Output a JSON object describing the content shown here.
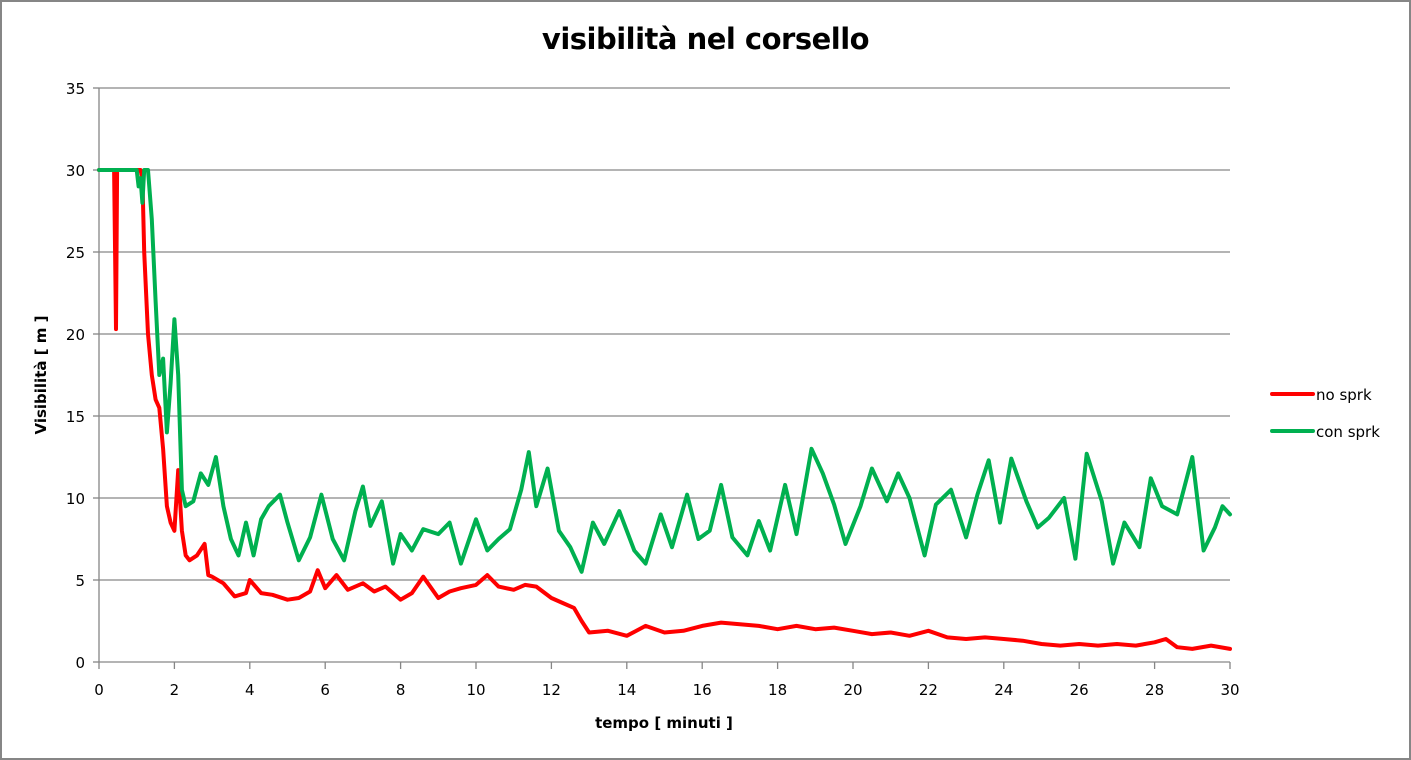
{
  "chart_data": {
    "type": "line",
    "title": "visibilità nel corsello",
    "xlabel": "tempo  [ minuti ]",
    "ylabel": "Visibilità  [ m ]",
    "xlim": [
      0,
      30
    ],
    "ylim": [
      0,
      35
    ],
    "xticks": [
      0,
      2,
      4,
      6,
      8,
      10,
      12,
      14,
      16,
      18,
      20,
      22,
      24,
      26,
      28,
      30
    ],
    "yticks": [
      0,
      5,
      10,
      15,
      20,
      25,
      30,
      35
    ],
    "grid": "horizontal",
    "legend_position": "right",
    "series": [
      {
        "name": "no sprk",
        "color": "#ff0000",
        "x": [
          0,
          0.4,
          0.45,
          0.48,
          0.5,
          1.1,
          1.15,
          1.2,
          1.3,
          1.4,
          1.5,
          1.6,
          1.7,
          1.8,
          1.9,
          2.0,
          2.1,
          2.2,
          2.3,
          2.4,
          2.6,
          2.8,
          2.9,
          3.0,
          3.3,
          3.6,
          3.9,
          4.0,
          4.3,
          4.6,
          5.0,
          5.3,
          5.6,
          5.8,
          6.0,
          6.3,
          6.6,
          7.0,
          7.3,
          7.6,
          8.0,
          8.3,
          8.6,
          9.0,
          9.3,
          9.6,
          10.0,
          10.3,
          10.6,
          11.0,
          11.3,
          11.6,
          12.0,
          12.3,
          12.6,
          12.8,
          13.0,
          13.5,
          14.0,
          14.5,
          15.0,
          15.5,
          16.0,
          16.5,
          17.0,
          17.5,
          18.0,
          18.5,
          19.0,
          19.5,
          20.0,
          20.5,
          21.0,
          21.5,
          22.0,
          22.5,
          23.0,
          23.5,
          24.0,
          24.5,
          25.0,
          25.5,
          26.0,
          26.5,
          27.0,
          27.5,
          28.0,
          28.3,
          28.6,
          29.0,
          29.5,
          30.0
        ],
        "values": [
          30,
          30,
          20.3,
          30,
          30,
          30,
          29.5,
          25,
          20,
          17.5,
          16,
          15.5,
          13,
          9.5,
          8.5,
          8,
          11.7,
          8,
          6.5,
          6.2,
          6.5,
          7.2,
          5.3,
          5.2,
          4.8,
          4,
          4.2,
          5,
          4.2,
          4.1,
          3.8,
          3.9,
          4.3,
          5.6,
          4.5,
          5.3,
          4.4,
          4.8,
          4.3,
          4.6,
          3.8,
          4.2,
          5.2,
          3.9,
          4.3,
          4.5,
          4.7,
          5.3,
          4.6,
          4.4,
          4.7,
          4.6,
          3.9,
          3.6,
          3.3,
          2.5,
          1.8,
          1.9,
          1.6,
          2.2,
          1.8,
          1.9,
          2.2,
          2.4,
          2.3,
          2.2,
          2.0,
          2.2,
          2.0,
          2.1,
          1.9,
          1.7,
          1.8,
          1.6,
          1.9,
          1.5,
          1.4,
          1.5,
          1.4,
          1.3,
          1.1,
          1.0,
          1.1,
          1.0,
          1.1,
          1.0,
          1.2,
          1.4,
          0.9,
          0.8,
          1.0,
          0.8
        ]
      },
      {
        "name": "con sprk",
        "color": "#00b050",
        "x": [
          0,
          1.0,
          1.05,
          1.1,
          1.15,
          1.2,
          1.3,
          1.4,
          1.5,
          1.6,
          1.7,
          1.8,
          1.9,
          2.0,
          2.1,
          2.2,
          2.3,
          2.5,
          2.7,
          2.9,
          3.1,
          3.3,
          3.5,
          3.7,
          3.9,
          4.1,
          4.3,
          4.5,
          4.8,
          5.0,
          5.3,
          5.6,
          5.9,
          6.2,
          6.5,
          6.8,
          7.0,
          7.2,
          7.5,
          7.8,
          8.0,
          8.3,
          8.6,
          9.0,
          9.3,
          9.6,
          10.0,
          10.3,
          10.6,
          10.9,
          11.2,
          11.4,
          11.6,
          11.9,
          12.2,
          12.5,
          12.8,
          13.1,
          13.4,
          13.8,
          14.2,
          14.5,
          14.9,
          15.2,
          15.6,
          15.9,
          16.2,
          16.5,
          16.8,
          17.2,
          17.5,
          17.8,
          18.2,
          18.5,
          18.9,
          19.2,
          19.5,
          19.8,
          20.2,
          20.5,
          20.9,
          21.2,
          21.5,
          21.9,
          22.2,
          22.6,
          23.0,
          23.3,
          23.6,
          23.9,
          24.2,
          24.6,
          24.9,
          25.2,
          25.6,
          25.9,
          26.2,
          26.6,
          26.9,
          27.2,
          27.6,
          27.9,
          28.2,
          28.6,
          29.0,
          29.3,
          29.6,
          29.8,
          30.0
        ],
        "values": [
          30,
          30,
          29,
          29.5,
          28,
          30,
          30,
          27,
          22,
          17.5,
          18.5,
          14,
          17,
          20.9,
          17.5,
          10.5,
          9.5,
          9.8,
          11.5,
          10.8,
          12.5,
          9.5,
          7.5,
          6.5,
          8.5,
          6.5,
          8.7,
          9.5,
          10.2,
          8.5,
          6.2,
          7.6,
          10.2,
          7.5,
          6.2,
          9.2,
          10.7,
          8.3,
          9.8,
          6.0,
          7.8,
          6.8,
          8.1,
          7.8,
          8.5,
          6.0,
          8.7,
          6.8,
          7.5,
          8.1,
          10.5,
          12.8,
          9.5,
          11.8,
          8.0,
          7.0,
          5.5,
          8.5,
          7.2,
          9.2,
          6.8,
          6.0,
          9.0,
          7.0,
          10.2,
          7.5,
          8.0,
          10.8,
          7.6,
          6.5,
          8.6,
          6.8,
          10.8,
          7.8,
          13.0,
          11.5,
          9.6,
          7.2,
          9.5,
          11.8,
          9.8,
          11.5,
          10.0,
          6.5,
          9.6,
          10.5,
          7.6,
          10.2,
          12.3,
          8.5,
          12.4,
          9.8,
          8.2,
          8.8,
          10.0,
          6.3,
          12.7,
          9.8,
          6.0,
          8.5,
          7.0,
          11.2,
          9.5,
          9.0,
          12.5,
          6.8,
          8.2,
          9.5,
          9.0
        ]
      }
    ]
  },
  "legend": {
    "items": [
      {
        "label": "no sprk",
        "color": "#ff0000"
      },
      {
        "label": "con sprk",
        "color": "#00b050"
      }
    ]
  }
}
